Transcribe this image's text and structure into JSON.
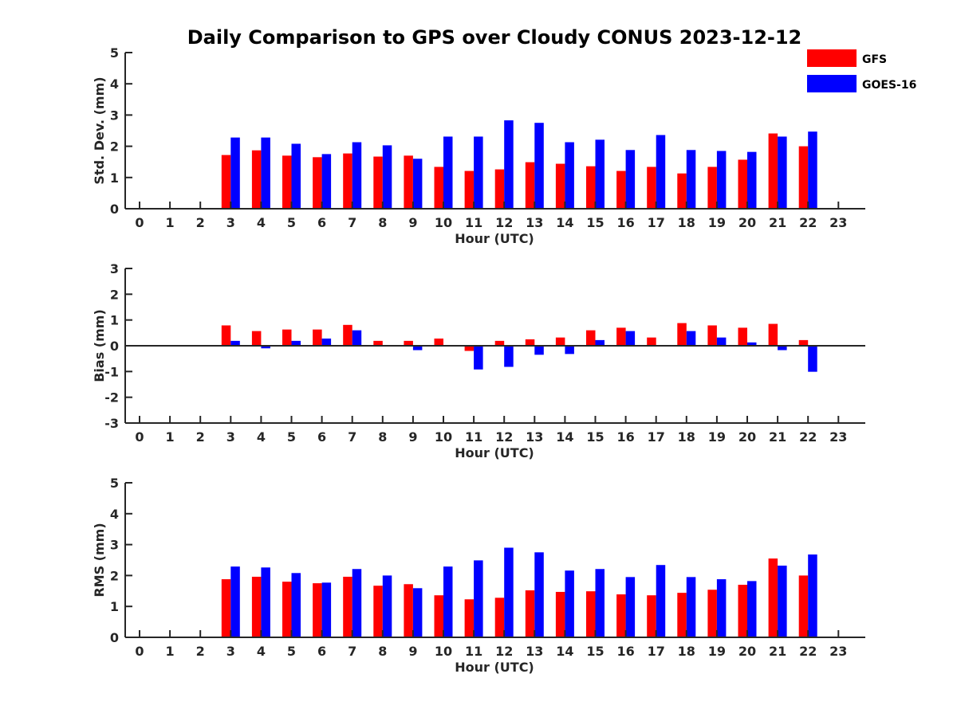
{
  "figure": {
    "title": "Daily Comparison to GPS over Cloudy CONUS 2023-12-12"
  },
  "legend": {
    "placement": "top-right",
    "items": [
      {
        "label": "GFS",
        "color": "#ff0000"
      },
      {
        "label": "GOES-16",
        "color": "#0000ff"
      }
    ]
  },
  "chart_data": [
    {
      "type": "bar",
      "ylabel": "Std. Dev. (mm)",
      "xlabel": "Hour (UTC)",
      "ylim": [
        0,
        5
      ],
      "yticks": [
        0,
        1,
        2,
        3,
        4,
        5
      ],
      "categories": [
        "0",
        "1",
        "2",
        "3",
        "4",
        "5",
        "6",
        "7",
        "8",
        "9",
        "10",
        "11",
        "12",
        "13",
        "14",
        "15",
        "16",
        "17",
        "18",
        "19",
        "20",
        "21",
        "22",
        "23"
      ],
      "series": [
        {
          "name": "GFS",
          "color": "#ff0000",
          "values": [
            null,
            null,
            null,
            1.72,
            1.87,
            1.7,
            1.65,
            1.77,
            1.67,
            1.7,
            1.34,
            1.21,
            1.26,
            1.49,
            1.44,
            1.36,
            1.21,
            1.34,
            1.13,
            1.34,
            1.57,
            2.41,
            2.0,
            null
          ]
        },
        {
          "name": "GOES-16",
          "color": "#0000ff",
          "values": [
            null,
            null,
            null,
            2.28,
            2.28,
            2.08,
            1.75,
            2.13,
            2.03,
            1.6,
            2.31,
            2.31,
            2.83,
            2.75,
            2.13,
            2.21,
            1.88,
            2.36,
            1.88,
            1.85,
            1.82,
            2.31,
            2.47,
            null
          ]
        }
      ]
    },
    {
      "type": "bar",
      "ylabel": "Bias (mm)",
      "xlabel": "Hour (UTC)",
      "ylim": [
        -3,
        3
      ],
      "yticks": [
        -3,
        -2,
        -1,
        0,
        1,
        2,
        3
      ],
      "categories": [
        "0",
        "1",
        "2",
        "3",
        "4",
        "5",
        "6",
        "7",
        "8",
        "9",
        "10",
        "11",
        "12",
        "13",
        "14",
        "15",
        "16",
        "17",
        "18",
        "19",
        "20",
        "21",
        "22",
        "23"
      ],
      "series": [
        {
          "name": "GFS",
          "color": "#ff0000",
          "values": [
            null,
            null,
            null,
            0.79,
            0.57,
            0.63,
            0.63,
            0.81,
            0.19,
            0.19,
            0.28,
            -0.2,
            0.19,
            0.25,
            0.32,
            0.6,
            0.7,
            0.32,
            0.88,
            0.79,
            0.7,
            0.85,
            0.22,
            null
          ]
        },
        {
          "name": "GOES-16",
          "color": "#0000ff",
          "values": [
            null,
            null,
            null,
            0.19,
            -0.1,
            0.19,
            0.28,
            0.6,
            0.03,
            -0.17,
            0.03,
            -0.92,
            -0.82,
            -0.35,
            -0.32,
            0.22,
            0.57,
            -0.03,
            0.57,
            0.32,
            0.13,
            -0.17,
            -1.01,
            null
          ]
        }
      ]
    },
    {
      "type": "bar",
      "ylabel": "RMS (mm)",
      "xlabel": "Hour (UTC)",
      "ylim": [
        0,
        5
      ],
      "yticks": [
        0,
        1,
        2,
        3,
        4,
        5
      ],
      "categories": [
        "0",
        "1",
        "2",
        "3",
        "4",
        "5",
        "6",
        "7",
        "8",
        "9",
        "10",
        "11",
        "12",
        "13",
        "14",
        "15",
        "16",
        "17",
        "18",
        "19",
        "20",
        "21",
        "22",
        "23"
      ],
      "series": [
        {
          "name": "GFS",
          "color": "#ff0000",
          "values": [
            null,
            null,
            null,
            1.88,
            1.96,
            1.8,
            1.75,
            1.96,
            1.67,
            1.72,
            1.36,
            1.23,
            1.28,
            1.52,
            1.47,
            1.49,
            1.39,
            1.36,
            1.44,
            1.54,
            1.7,
            2.55,
            2.0,
            null
          ]
        },
        {
          "name": "GOES-16",
          "color": "#0000ff",
          "values": [
            null,
            null,
            null,
            2.29,
            2.26,
            2.08,
            1.77,
            2.21,
            2.0,
            1.59,
            2.29,
            2.49,
            2.9,
            2.75,
            2.16,
            2.21,
            1.95,
            2.34,
            1.95,
            1.88,
            1.82,
            2.32,
            2.68,
            null
          ]
        }
      ]
    }
  ]
}
